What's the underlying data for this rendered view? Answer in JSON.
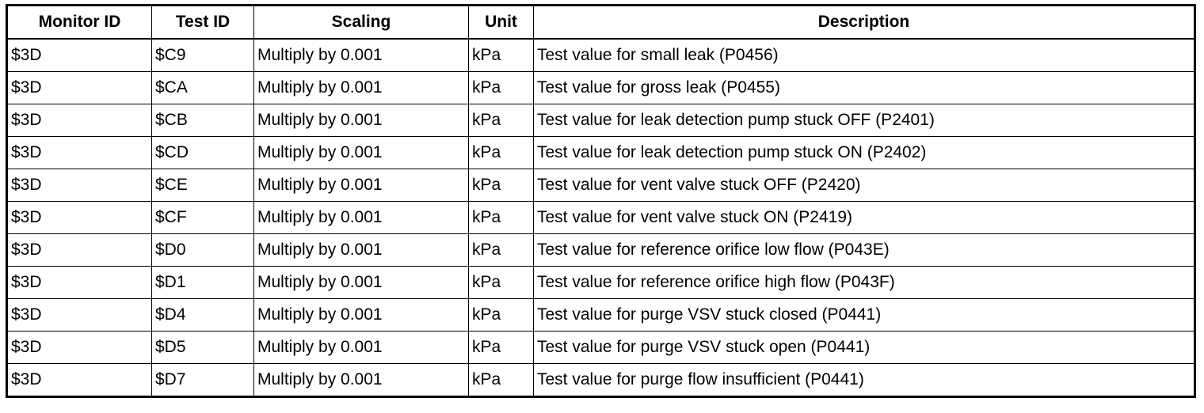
{
  "table": {
    "header": [
      "Monitor ID",
      "Test ID",
      "Scaling",
      "Unit",
      "Description"
    ],
    "rows": [
      [
        "$3D",
        "$C9",
        "Multiply by 0.001",
        "kPa",
        "Test value for small leak (P0456)"
      ],
      [
        "$3D",
        "$CA",
        "Multiply by 0.001",
        "kPa",
        "Test value for gross leak (P0455)"
      ],
      [
        "$3D",
        "$CB",
        "Multiply by 0.001",
        "kPa",
        "Test value for leak detection pump stuck OFF (P2401)"
      ],
      [
        "$3D",
        "$CD",
        "Multiply by 0.001",
        "kPa",
        "Test value for leak detection pump stuck ON (P2402)"
      ],
      [
        "$3D",
        "$CE",
        "Multiply by 0.001",
        "kPa",
        "Test value for vent valve stuck OFF (P2420)"
      ],
      [
        "$3D",
        "$CF",
        "Multiply by 0.001",
        "kPa",
        "Test value for vent valve stuck ON (P2419)"
      ],
      [
        "$3D",
        "$D0",
        "Multiply by 0.001",
        "kPa",
        "Test value for reference orifice low flow (P043E)"
      ],
      [
        "$3D",
        "$D1",
        "Multiply by 0.001",
        "kPa",
        "Test value for reference orifice high flow (P043F)"
      ],
      [
        "$3D",
        "$D4",
        "Multiply by 0.001",
        "kPa",
        "Test value for purge VSV stuck closed (P0441)"
      ],
      [
        "$3D",
        "$D5",
        "Multiply by 0.001",
        "kPa",
        "Test value for purge VSV stuck open (P0441)"
      ],
      [
        "$3D",
        "$D7",
        "Multiply by 0.001",
        "kPa",
        "Test value for purge flow insufficient (P0441)"
      ]
    ]
  }
}
